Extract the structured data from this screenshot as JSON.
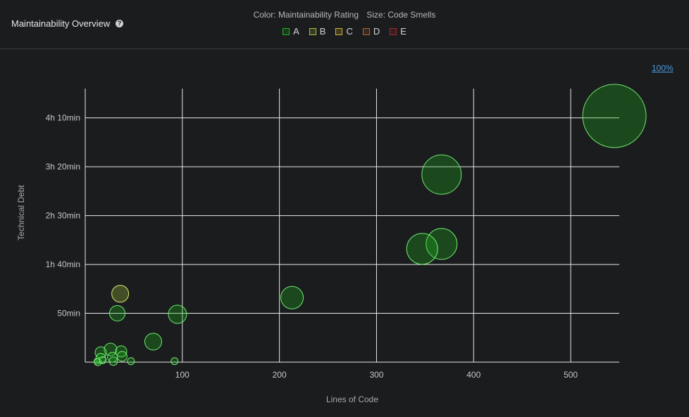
{
  "header": {
    "title": "Maintainability Overview",
    "help_glyph": "?",
    "color_caption": "Color: Maintainability Rating",
    "size_caption": "Size: Code Smells"
  },
  "legend": [
    {
      "label": "A",
      "color": "#1eb41e"
    },
    {
      "label": "B",
      "color": "#9cc53b"
    },
    {
      "label": "C",
      "color": "#d4b22c"
    },
    {
      "label": "D",
      "color": "#b0622a"
    },
    {
      "label": "E",
      "color": "#9e2b33"
    }
  ],
  "zoom_label": "100%",
  "chart_data": {
    "type": "scatter",
    "xlabel": "Lines of Code",
    "ylabel": "Technical Debt",
    "xlim": [
      0,
      550
    ],
    "ylim": [
      0,
      280
    ],
    "x_ticks": [
      100,
      200,
      300,
      400,
      500
    ],
    "y_ticks": [
      {
        "value": 50,
        "label": "50min"
      },
      {
        "value": 100,
        "label": "1h 40min"
      },
      {
        "value": 150,
        "label": "2h 30min"
      },
      {
        "value": 200,
        "label": "3h 20min"
      },
      {
        "value": 250,
        "label": "4h 10min"
      }
    ],
    "grid": true,
    "point_style": {
      "fill_opacity": 0.3,
      "stroke": "#6fe86f"
    },
    "points": [
      {
        "x": 545,
        "y": 252,
        "size": 45,
        "rating": "A"
      },
      {
        "x": 367,
        "y": 192,
        "size": 28,
        "rating": "A"
      },
      {
        "x": 367,
        "y": 121,
        "size": 22,
        "rating": "A"
      },
      {
        "x": 347,
        "y": 116,
        "size": 22,
        "rating": "A"
      },
      {
        "x": 213,
        "y": 66,
        "size": 16,
        "rating": "A"
      },
      {
        "x": 95,
        "y": 49,
        "size": 13,
        "rating": "A"
      },
      {
        "x": 33,
        "y": 50,
        "size": 11,
        "rating": "A"
      },
      {
        "x": 36,
        "y": 70,
        "size": 12,
        "rating": "B"
      },
      {
        "x": 70,
        "y": 21,
        "size": 12,
        "rating": "A"
      },
      {
        "x": 26,
        "y": 13,
        "size": 9,
        "rating": "A"
      },
      {
        "x": 16,
        "y": 10,
        "size": 8,
        "rating": "A"
      },
      {
        "x": 37,
        "y": 11,
        "size": 8,
        "rating": "A"
      },
      {
        "x": 38,
        "y": 6,
        "size": 7,
        "rating": "A"
      },
      {
        "x": 28,
        "y": 5,
        "size": 7,
        "rating": "A"
      },
      {
        "x": 16,
        "y": 4,
        "size": 7,
        "rating": "A"
      },
      {
        "x": 29,
        "y": 1,
        "size": 6,
        "rating": "A"
      },
      {
        "x": 47,
        "y": 1,
        "size": 5,
        "rating": "A"
      },
      {
        "x": 92,
        "y": 1,
        "size": 5,
        "rating": "A"
      },
      {
        "x": 13,
        "y": 0,
        "size": 5,
        "rating": "A"
      },
      {
        "x": 18,
        "y": 2,
        "size": 5,
        "rating": "A"
      },
      {
        "x": 12,
        "y": 1,
        "size": 4,
        "rating": "A"
      }
    ]
  }
}
